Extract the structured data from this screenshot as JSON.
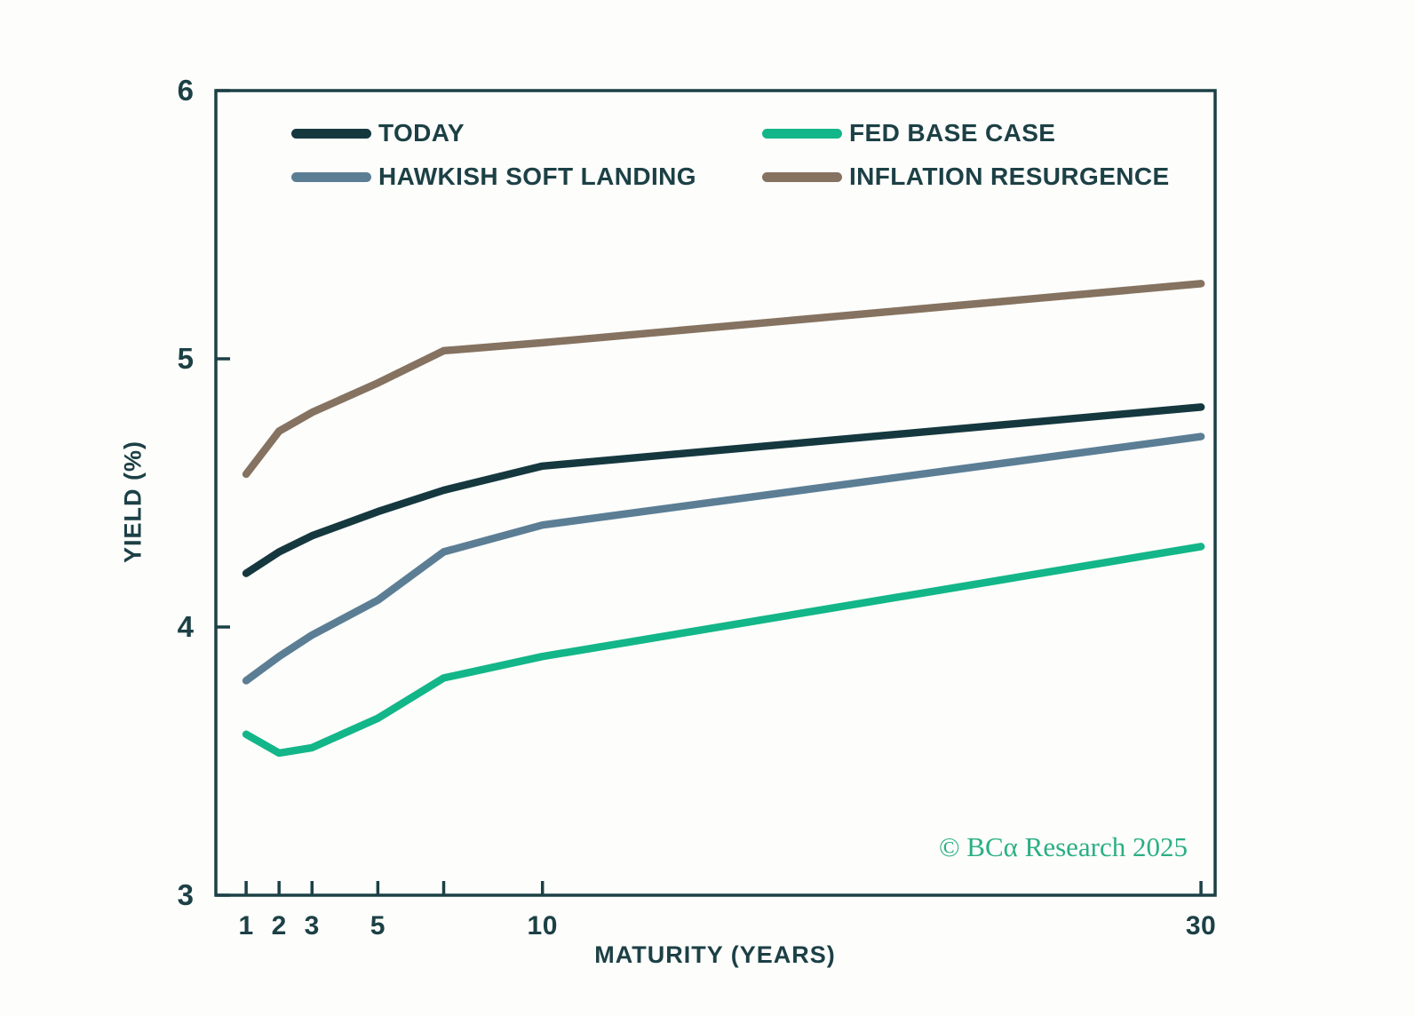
{
  "chart_data": {
    "type": "line",
    "title": "",
    "xlabel": "MATURITY (YEARS)",
    "ylabel": "YIELD (%)",
    "watermark": "© BCα Research 2025",
    "x_scale": "linear",
    "xlim": [
      0.08,
      30.43
    ],
    "ylim": [
      3,
      6
    ],
    "grid": false,
    "legend_position": "top-inside-two-columns",
    "x": [
      1,
      2,
      3,
      5,
      7,
      10,
      30
    ],
    "x_ticks": [
      {
        "v": 1,
        "label": "1"
      },
      {
        "v": 2,
        "label": "2"
      },
      {
        "v": 3,
        "label": "3"
      },
      {
        "v": 5,
        "label": "5"
      },
      {
        "v": 7,
        "label": ""
      },
      {
        "v": 10,
        "label": "10"
      },
      {
        "v": 30,
        "label": "30"
      }
    ],
    "y_ticks": [
      {
        "v": 3,
        "label": "3"
      },
      {
        "v": 4,
        "label": "4"
      },
      {
        "v": 5,
        "label": "5"
      },
      {
        "v": 6,
        "label": "6"
      }
    ],
    "series": [
      {
        "name": "TODAY",
        "color": "#15383f",
        "values": [
          4.2,
          4.28,
          4.34,
          4.43,
          4.51,
          4.6,
          4.82
        ]
      },
      {
        "name": "FED BASE CASE",
        "color": "#13b688",
        "values": [
          3.6,
          3.53,
          3.55,
          3.66,
          3.81,
          3.89,
          4.3
        ]
      },
      {
        "name": "HAWKISH SOFT LANDING",
        "color": "#5b7e95",
        "values": [
          3.8,
          3.89,
          3.97,
          4.1,
          4.28,
          4.38,
          4.71
        ]
      },
      {
        "name": "INFLATION RESURGENCE",
        "color": "#857260",
        "values": [
          4.57,
          4.73,
          4.8,
          4.91,
          5.03,
          5.06,
          5.28
        ]
      }
    ],
    "colors": {
      "axis": "#1c4045",
      "tick_text": "#1c4045",
      "watermark": "#2aaf85",
      "background": "#fdfdfb"
    }
  }
}
